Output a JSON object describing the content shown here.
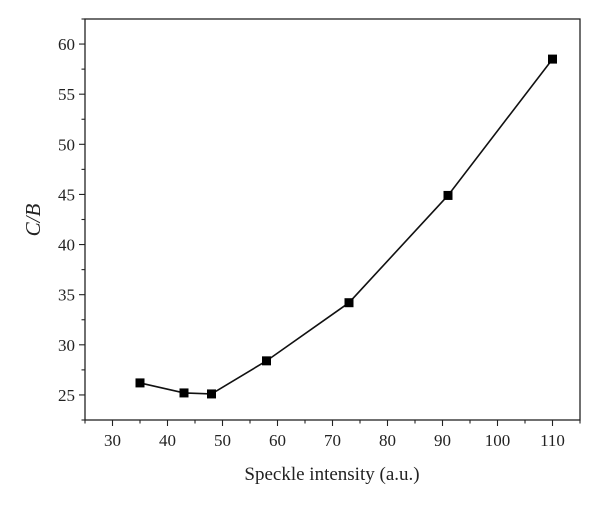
{
  "chart_data": {
    "type": "line",
    "xlabel": "Speckle intensity (a.u.)",
    "ylabel": "C/B",
    "xlim": [
      25,
      115
    ],
    "ylim": [
      22.5,
      62.5
    ],
    "x_ticks": [
      30,
      40,
      50,
      60,
      70,
      80,
      90,
      100,
      110
    ],
    "y_ticks": [
      25,
      30,
      35,
      40,
      45,
      50,
      55,
      60
    ],
    "grid": false,
    "marker": "square",
    "line_color": "#111111",
    "series": [
      {
        "x": [
          35,
          43,
          48,
          58,
          73,
          91,
          110
        ],
        "y": [
          26.2,
          25.2,
          25.1,
          28.4,
          34.2,
          44.9,
          58.5
        ]
      }
    ]
  }
}
